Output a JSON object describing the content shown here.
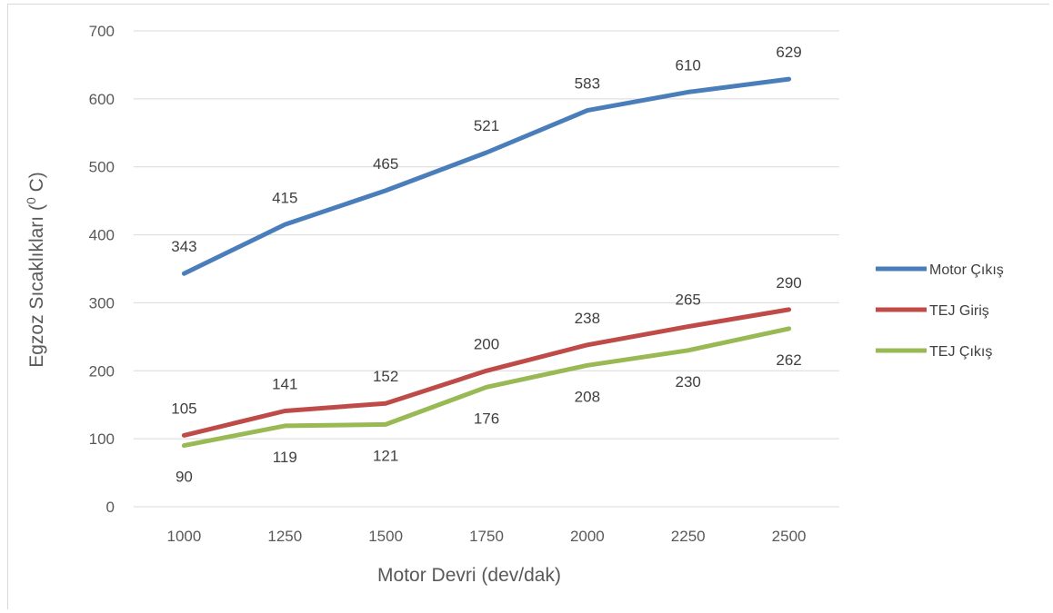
{
  "chart_data": {
    "type": "line",
    "xlabel": "Motor Devri (dev/dak)",
    "ylabel": "Egzoz Sıcaklıkları (",
    "ylabel_sup": "0",
    "ylabel_suffix": " C)",
    "categories": [
      "1000",
      "1250",
      "1500",
      "1750",
      "2000",
      "2250",
      "2500"
    ],
    "ylim": [
      0,
      700
    ],
    "yticks": [
      0,
      100,
      200,
      300,
      400,
      500,
      600,
      700
    ],
    "grid": true,
    "legend_position": "right",
    "series": [
      {
        "name": "Motor Çıkış",
        "color": "#4a7ebb",
        "label_position": "above",
        "values": [
          343,
          415,
          465,
          521,
          583,
          610,
          629
        ]
      },
      {
        "name": "TEJ Giriş",
        "color": "#be4b48",
        "label_position": "above",
        "values": [
          105,
          141,
          152,
          200,
          238,
          265,
          290
        ]
      },
      {
        "name": "TEJ Çıkış",
        "color": "#98b954",
        "label_position": "below",
        "values": [
          90,
          119,
          121,
          176,
          208,
          230,
          262
        ]
      }
    ]
  }
}
